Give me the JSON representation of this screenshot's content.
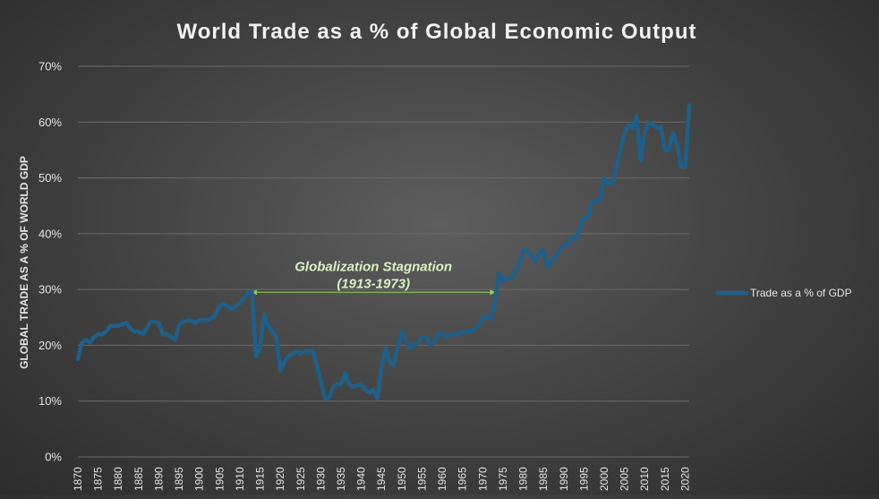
{
  "chart_data": {
    "type": "line",
    "title": "World Trade as a % of Global Economic Output",
    "ylabel": "GLOBAL TRADE AS A % OF WORLD GDP",
    "xlabel": "",
    "ylim": [
      0,
      70
    ],
    "y_ticks": [
      0,
      10,
      20,
      30,
      40,
      50,
      60,
      70
    ],
    "y_tick_format": "percent",
    "x_ticks": [
      1870,
      1875,
      1880,
      1885,
      1890,
      1895,
      1900,
      1905,
      1910,
      1915,
      1920,
      1925,
      1930,
      1935,
      1940,
      1945,
      1950,
      1955,
      1960,
      1965,
      1970,
      1975,
      1980,
      1985,
      1990,
      1995,
      2000,
      2005,
      2010,
      2015,
      2020
    ],
    "grid": "horizontal",
    "legend_position": "right",
    "colors": {
      "line": "#1f5f88",
      "annotation": "#8fd14f",
      "annotation_text": "#d8f2c4",
      "text": "#e6e6e6",
      "grid": "#6a6a6a"
    },
    "annotation": {
      "text_line1": "Globalization Stagnation",
      "text_line2": "(1913-1973)",
      "x_start": 1913,
      "x_end": 1973,
      "y": 29.5
    },
    "series": [
      {
        "name": "Trade as a % of GDP",
        "x": [
          1870,
          1871,
          1872,
          1873,
          1874,
          1875,
          1876,
          1877,
          1878,
          1879,
          1880,
          1881,
          1882,
          1883,
          1884,
          1885,
          1886,
          1887,
          1888,
          1889,
          1890,
          1891,
          1892,
          1893,
          1894,
          1895,
          1896,
          1897,
          1898,
          1899,
          1900,
          1901,
          1902,
          1903,
          1904,
          1905,
          1906,
          1907,
          1908,
          1909,
          1910,
          1911,
          1912,
          1913,
          1914,
          1915,
          1916,
          1917,
          1918,
          1919,
          1920,
          1921,
          1922,
          1923,
          1924,
          1925,
          1926,
          1927,
          1928,
          1929,
          1930,
          1931,
          1932,
          1933,
          1934,
          1935,
          1936,
          1937,
          1938,
          1939,
          1940,
          1941,
          1942,
          1943,
          1944,
          1945,
          1946,
          1947,
          1948,
          1949,
          1950,
          1951,
          1952,
          1953,
          1954,
          1955,
          1956,
          1957,
          1958,
          1959,
          1960,
          1961,
          1962,
          1963,
          1964,
          1965,
          1966,
          1967,
          1968,
          1969,
          1970,
          1971,
          1972,
          1973,
          1974,
          1975,
          1976,
          1977,
          1978,
          1979,
          1980,
          1981,
          1982,
          1983,
          1984,
          1985,
          1986,
          1987,
          1988,
          1989,
          1990,
          1991,
          1992,
          1993,
          1994,
          1995,
          1996,
          1997,
          1998,
          1999,
          2000,
          2001,
          2002,
          2003,
          2004,
          2005,
          2006,
          2007,
          2008,
          2009,
          2010,
          2011,
          2012,
          2013,
          2014,
          2015,
          2016,
          2017,
          2018,
          2019,
          2020,
          2021
        ],
        "values": [
          17.5,
          20.5,
          21,
          20.5,
          21.5,
          22,
          22,
          22.5,
          23.5,
          23.5,
          23.5,
          23.8,
          24,
          23,
          22.5,
          22.5,
          22,
          23,
          24.2,
          24.2,
          24,
          22,
          22,
          21.5,
          21,
          23.8,
          24.2,
          24.5,
          24.5,
          24,
          24.5,
          24.5,
          24.5,
          24.8,
          25.5,
          27,
          27.5,
          27,
          26.5,
          27,
          27.5,
          28.5,
          29.5,
          29.5,
          18,
          19.5,
          25.5,
          23.5,
          22.5,
          21.5,
          15.5,
          17,
          18,
          18.5,
          19,
          18.5,
          19,
          19,
          19,
          16.5,
          13.5,
          10.5,
          10.5,
          12.5,
          13,
          13,
          15,
          13,
          12.5,
          12.8,
          13,
          12,
          11.5,
          12,
          10.5,
          16,
          19.5,
          17,
          16.5,
          19.5,
          22.5,
          21,
          19.5,
          20,
          20.5,
          21.5,
          21.5,
          20,
          20.5,
          22,
          22,
          21.5,
          22,
          22,
          22,
          22.5,
          22.5,
          22.5,
          23,
          23.5,
          25,
          25,
          25,
          28,
          33,
          31.5,
          32,
          32,
          33,
          34.5,
          37,
          37,
          36,
          35,
          36.5,
          37,
          34,
          35,
          36,
          37,
          38,
          38,
          39.5,
          39,
          41,
          43,
          43,
          45.5,
          46,
          46,
          50,
          49,
          49,
          52,
          55,
          58,
          59.5,
          59,
          61,
          53,
          58,
          60,
          59.5,
          59,
          59,
          55,
          55,
          58,
          56,
          52,
          52,
          63
        ]
      }
    ]
  }
}
